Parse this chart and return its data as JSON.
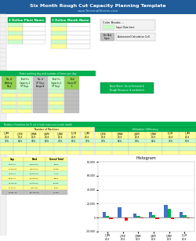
{
  "title": "Six Month Rough Cut Capacity Planning Template",
  "subtitle": "www.TerminalSheets.com",
  "header_bg": "#1f5c99",
  "header_text": "#ffffff",
  "subtitle_color": "#aaddff",
  "hist_title": "Histogram",
  "months": [
    "1_JAN\n2015",
    "2_FEB\n2015",
    "3_MAR\n2015",
    "4_APR\n2015",
    "5_MAY\n2015",
    "6_JUN\n2015"
  ],
  "blue_bars": [
    8000,
    15000,
    6000,
    8000,
    18000,
    8000
  ],
  "green_bars": [
    2000,
    0,
    2000,
    4000,
    12000,
    3000
  ],
  "red_bars": [
    -2000,
    -4000,
    -1000,
    -2000,
    -2000,
    -1000
  ],
  "ylim_min": -20000,
  "ylim_max": 80000,
  "yticks": [
    -20000,
    0,
    20000,
    40000,
    60000,
    80000
  ],
  "spreadsheet_bg": "#ffffff",
  "green_cell": "#92d050",
  "yellow_cell": "#ffff99",
  "light_green_cell": "#ccffcc",
  "gray_cell": "#bfbfbf",
  "dark_green_header": "#00b050",
  "blue_header": "#1f5c99",
  "chart_area_bg": "#ffffff",
  "grid_color": "#dddddd",
  "row_number_bg": "#f2f2f2",
  "col_letter_bg": "#e8e8e8"
}
